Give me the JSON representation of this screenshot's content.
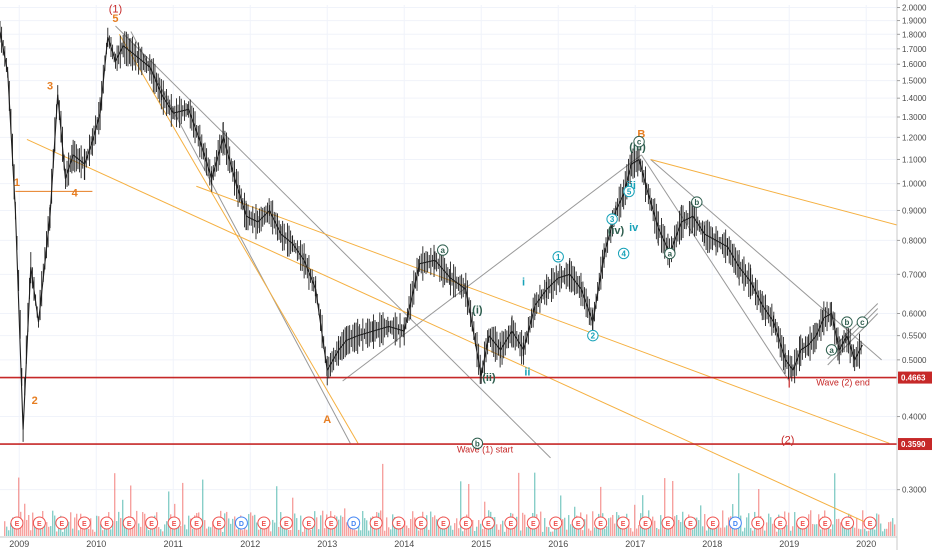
{
  "chart_data": {
    "type": "line",
    "title": "",
    "xlabel": "",
    "ylabel": "",
    "x_range": [
      2008.75,
      2020.4
    ],
    "ylim": [
      0.25,
      2.02
    ],
    "x_ticks": [
      {
        "label": "2009",
        "x": 2009.0
      },
      {
        "label": "2010",
        "x": 2010.0
      },
      {
        "label": "2011",
        "x": 2011.0
      },
      {
        "label": "2012",
        "x": 2012.0
      },
      {
        "label": "2013",
        "x": 2013.0
      },
      {
        "label": "2014",
        "x": 2014.0
      },
      {
        "label": "2015",
        "x": 2015.0
      },
      {
        "label": "2016",
        "x": 2016.0
      },
      {
        "label": "2017",
        "x": 2017.0
      },
      {
        "label": "2018",
        "x": 2018.0
      },
      {
        "label": "2019",
        "x": 2019.0
      },
      {
        "label": "2020",
        "x": 2020.0
      }
    ],
    "y_ticks": [
      {
        "label": "2.0000",
        "v": 2.0
      },
      {
        "label": "1.9000",
        "v": 1.9
      },
      {
        "label": "1.8000",
        "v": 1.8
      },
      {
        "label": "1.7000",
        "v": 1.7
      },
      {
        "label": "1.6000",
        "v": 1.6
      },
      {
        "label": "1.5000",
        "v": 1.5
      },
      {
        "label": "1.4000",
        "v": 1.4
      },
      {
        "label": "1.3000",
        "v": 1.3
      },
      {
        "label": "1.2000",
        "v": 1.2
      },
      {
        "label": "1.1000",
        "v": 1.1
      },
      {
        "label": "1.0000",
        "v": 1.0
      },
      {
        "label": "0.9000",
        "v": 0.9
      },
      {
        "label": "0.8000",
        "v": 0.8
      },
      {
        "label": "0.7000",
        "v": 0.7
      },
      {
        "label": "0.6000",
        "v": 0.6
      },
      {
        "label": "0.5500",
        "v": 0.55
      },
      {
        "label": "0.5000",
        "v": 0.5
      },
      {
        "label": "0.4000",
        "v": 0.4
      },
      {
        "label": "0.3000",
        "v": 0.3
      }
    ],
    "series": [
      {
        "color": "#1f1f1f",
        "x": [
          2008.75,
          2008.85,
          2008.95,
          2009.05,
          2009.15,
          2009.25,
          2009.4,
          2009.5,
          2009.6,
          2009.7,
          2009.85,
          2009.95,
          2010.05,
          2010.15,
          2010.25,
          2010.35,
          2010.45,
          2010.55,
          2010.7,
          2010.85,
          2011.0,
          2011.2,
          2011.35,
          2011.5,
          2011.65,
          2011.8,
          2011.95,
          2012.1,
          2012.25,
          2012.4,
          2012.55,
          2012.7,
          2012.85,
          2013.0,
          2013.15,
          2013.25,
          2013.4,
          2013.6,
          2013.8,
          2014.0,
          2014.2,
          2014.4,
          2014.6,
          2014.8,
          2015.0,
          2015.1,
          2015.25,
          2015.4,
          2015.55,
          2015.7,
          2015.85,
          2016.0,
          2016.15,
          2016.3,
          2016.45,
          2016.6,
          2016.75,
          2016.85,
          2016.95,
          2017.05,
          2017.15,
          2017.3,
          2017.45,
          2017.6,
          2017.75,
          2017.9,
          2018.05,
          2018.2,
          2018.35,
          2018.5,
          2018.65,
          2018.8,
          2018.95,
          2019.05,
          2019.15,
          2019.25,
          2019.35,
          2019.45,
          2019.55,
          2019.65,
          2019.75,
          2019.85,
          2019.95
        ],
        "values": [
          1.82,
          1.55,
          0.9,
          0.38,
          0.72,
          0.58,
          0.88,
          1.42,
          1.02,
          1.12,
          1.08,
          1.18,
          1.32,
          1.78,
          1.62,
          1.72,
          1.68,
          1.64,
          1.58,
          1.42,
          1.32,
          1.34,
          1.18,
          1.02,
          1.2,
          1.02,
          0.88,
          0.86,
          0.9,
          0.82,
          0.79,
          0.74,
          0.66,
          0.48,
          0.52,
          0.54,
          0.55,
          0.56,
          0.57,
          0.56,
          0.73,
          0.74,
          0.69,
          0.66,
          0.47,
          0.55,
          0.52,
          0.56,
          0.52,
          0.62,
          0.66,
          0.69,
          0.7,
          0.66,
          0.58,
          0.76,
          0.9,
          0.96,
          1.08,
          1.1,
          0.98,
          0.84,
          0.76,
          0.86,
          0.88,
          0.82,
          0.8,
          0.78,
          0.72,
          0.68,
          0.62,
          0.58,
          0.5,
          0.48,
          0.52,
          0.53,
          0.55,
          0.59,
          0.6,
          0.52,
          0.55,
          0.5,
          0.53
        ]
      }
    ],
    "price_levels": [
      {
        "label": "0.4663",
        "value": 0.4663,
        "color": "#c62828"
      },
      {
        "label": "0.3590",
        "value": 0.359,
        "color": "#c62828"
      }
    ],
    "annotations": [
      {
        "text": "Wave (1) start",
        "x": 2015.05,
        "y": 0.347,
        "color": "#c62828"
      },
      {
        "text": "Wave (2) end",
        "x": 2019.7,
        "y": 0.452,
        "color": "#c62828"
      }
    ],
    "wave_labels": [
      {
        "text": "(1)",
        "x": 2010.25,
        "y": 1.96,
        "color": "#c62828"
      },
      {
        "text": "5",
        "x": 2010.25,
        "y": 1.89,
        "color": "#e67e22"
      },
      {
        "text": "3",
        "x": 2009.4,
        "y": 1.45,
        "color": "#e67e22"
      },
      {
        "text": "4",
        "x": 2009.72,
        "y": 0.95,
        "color": "#e67e22"
      },
      {
        "text": "2",
        "x": 2009.2,
        "y": 0.42,
        "color": "#e67e22"
      },
      {
        "text": "1",
        "x": 2008.97,
        "y": 0.99,
        "color": "#e67e22"
      },
      {
        "text": "A",
        "x": 2013.0,
        "y": 0.39,
        "color": "#e67e22"
      },
      {
        "text": "B",
        "x": 2017.08,
        "y": 1.2,
        "color": "#e67e22"
      },
      {
        "text": "(2)",
        "x": 2018.98,
        "y": 0.36,
        "color": "#c62828"
      },
      {
        "text": "i",
        "x": 2015.55,
        "y": 0.67,
        "color": "#17a2b8"
      },
      {
        "text": "ii",
        "x": 2015.6,
        "y": 0.47,
        "color": "#17a2b8"
      },
      {
        "text": "iii",
        "x": 2016.95,
        "y": 0.98,
        "color": "#17a2b8"
      },
      {
        "text": "iv",
        "x": 2016.98,
        "y": 0.83,
        "color": "#17a2b8"
      },
      {
        "text": "(i)",
        "x": 2014.95,
        "y": 0.6,
        "color": "#2e5e4e"
      },
      {
        "text": "(ii)",
        "x": 2015.1,
        "y": 0.46,
        "color": "#2e5e4e"
      },
      {
        "text": "(iii)",
        "x": 2017.03,
        "y": 1.14,
        "color": "#2e5e4e"
      },
      {
        "text": "(iv)",
        "x": 2016.75,
        "y": 0.82,
        "color": "#2e5e4e"
      }
    ],
    "circled_labels": [
      {
        "text": "a",
        "x": 2014.5,
        "y": 0.77,
        "color": "#2e5e4e"
      },
      {
        "text": "b",
        "x": 2014.95,
        "y": 0.36,
        "color": "#2e5e4e"
      },
      {
        "text": "c",
        "x": 2017.05,
        "y": 1.18,
        "color": "#2e5e4e"
      },
      {
        "text": "b",
        "x": 2017.8,
        "y": 0.93,
        "color": "#2e5e4e"
      },
      {
        "text": "a",
        "x": 2017.45,
        "y": 0.76,
        "color": "#2e5e4e"
      },
      {
        "text": "1",
        "x": 2016.0,
        "y": 0.75,
        "color": "#17a2b8"
      },
      {
        "text": "2",
        "x": 2016.45,
        "y": 0.55,
        "color": "#17a2b8"
      },
      {
        "text": "3",
        "x": 2016.7,
        "y": 0.87,
        "color": "#17a2b8"
      },
      {
        "text": "4",
        "x": 2016.85,
        "y": 0.76,
        "color": "#17a2b8"
      },
      {
        "text": "5",
        "x": 2016.92,
        "y": 0.97,
        "color": "#17a2b8"
      },
      {
        "text": "b",
        "x": 2019.75,
        "y": 0.58,
        "color": "#2e5e4e"
      },
      {
        "text": "c",
        "x": 2019.95,
        "y": 0.58,
        "color": "#2e5e4e"
      },
      {
        "text": "a",
        "x": 2019.55,
        "y": 0.52,
        "color": "#2e5e4e"
      }
    ],
    "trendlines": [
      {
        "x1": 2010.25,
        "y1": 1.86,
        "x2": 2015.9,
        "y2": 0.34,
        "color": "#999999"
      },
      {
        "x1": 2010.45,
        "y1": 1.82,
        "x2": 2013.3,
        "y2": 0.36,
        "color": "#999999"
      },
      {
        "x1": 2013.2,
        "y1": 0.46,
        "x2": 2017.08,
        "y2": 1.12,
        "color": "#999999"
      },
      {
        "x1": 2017.08,
        "y1": 1.12,
        "x2": 2019.0,
        "y2": 0.46,
        "color": "#999999"
      },
      {
        "x1": 2017.2,
        "y1": 1.1,
        "x2": 2020.2,
        "y2": 0.5,
        "color": "#999999"
      },
      {
        "x1": 2009.1,
        "y1": 1.19,
        "x2": 2020.1,
        "y2": 0.26,
        "color": "#f5b041"
      },
      {
        "x1": 2010.3,
        "y1": 1.8,
        "x2": 2013.4,
        "y2": 0.36,
        "color": "#f5b041"
      },
      {
        "x1": 2017.2,
        "y1": 1.1,
        "x2": 2020.4,
        "y2": 0.85,
        "color": "#f5b041"
      },
      {
        "x1": 2011.3,
        "y1": 0.99,
        "x2": 2020.3,
        "y2": 0.36,
        "color": "#f5b041"
      },
      {
        "x1": 2008.95,
        "y1": 0.97,
        "x2": 2009.95,
        "y2": 0.97,
        "color": "#e67e22"
      }
    ],
    "earnings_markers": [
      "E",
      "E",
      "E",
      "E",
      "E",
      "E",
      "E",
      "E",
      "E",
      "E",
      "D",
      "E",
      "E",
      "E",
      "E",
      "D",
      "E",
      "E",
      "E",
      "E",
      "E",
      "E",
      "E",
      "E",
      "E",
      "E",
      "E",
      "E",
      "E",
      "E",
      "E",
      "E",
      "D",
      "E",
      "E",
      "E",
      "E",
      "E",
      "E"
    ],
    "colors": {
      "up_volume": "#26a69a",
      "down_volume": "#ef5350",
      "price": "#1f1f1f",
      "level": "#c62828"
    }
  }
}
